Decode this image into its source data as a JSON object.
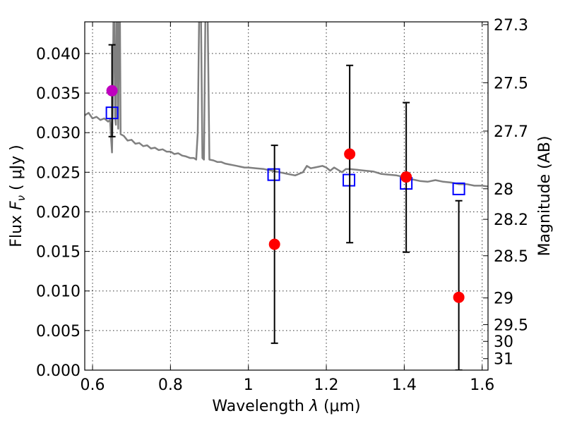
{
  "chart_data": {
    "type": "scatter",
    "xlabel_prefix": "Wavelength",
    "xlabel_symbol": "λ",
    "xlabel_unit": "(μm)",
    "ylabel_prefix": "Flux",
    "ylabel_symbol": "F",
    "ylabel_subscript": "ν",
    "ylabel_unit": "( μJy )",
    "y2label": "Magnitude (AB)",
    "xlim": [
      0.58,
      1.615
    ],
    "ylim": [
      0.0,
      0.044
    ],
    "grid": true,
    "x_ticks": [
      {
        "value": 0.6,
        "label": "0.6"
      },
      {
        "value": 0.8,
        "label": "0.8"
      },
      {
        "value": 1.0,
        "label": "1"
      },
      {
        "value": 1.2,
        "label": "1.2"
      },
      {
        "value": 1.4,
        "label": "1.4"
      },
      {
        "value": 1.6,
        "label": "1.6"
      }
    ],
    "y_ticks": [
      {
        "value": 0.0,
        "label": "0.000"
      },
      {
        "value": 0.005,
        "label": "0.005"
      },
      {
        "value": 0.01,
        "label": "0.010"
      },
      {
        "value": 0.015,
        "label": "0.015"
      },
      {
        "value": 0.02,
        "label": "0.020"
      },
      {
        "value": 0.025,
        "label": "0.025"
      },
      {
        "value": 0.03,
        "label": "0.030"
      },
      {
        "value": 0.035,
        "label": "0.035"
      },
      {
        "value": 0.04,
        "label": "0.040"
      }
    ],
    "y2_ticks": [
      {
        "flux": 0.04365,
        "label": "27.3"
      },
      {
        "flux": 0.03631,
        "label": "27.5"
      },
      {
        "flux": 0.0302,
        "label": "27.7"
      },
      {
        "flux": 0.02291,
        "label": "28"
      },
      {
        "flux": 0.01905,
        "label": "28.2"
      },
      {
        "flux": 0.01445,
        "label": "28.5"
      },
      {
        "flux": 0.00912,
        "label": "29"
      },
      {
        "flux": 0.00575,
        "label": "29.5"
      },
      {
        "flux": 0.00363,
        "label": "30"
      },
      {
        "flux": 0.00145,
        "label": "31"
      }
    ],
    "model_spectrum": {
      "color": "#808080",
      "points": [
        [
          0.58,
          0.0322
        ],
        [
          0.59,
          0.0325
        ],
        [
          0.6,
          0.0318
        ],
        [
          0.61,
          0.032
        ],
        [
          0.62,
          0.0316
        ],
        [
          0.63,
          0.0318
        ],
        [
          0.64,
          0.0314
        ],
        [
          0.645,
          0.0316
        ],
        [
          0.648,
          0.029
        ],
        [
          0.65,
          0.0275
        ],
        [
          0.652,
          0.0335
        ],
        [
          0.654,
          0.0465
        ],
        [
          0.656,
          0.0465
        ],
        [
          0.658,
          0.032
        ],
        [
          0.66,
          0.031
        ],
        [
          0.662,
          0.0465
        ],
        [
          0.664,
          0.0465
        ],
        [
          0.666,
          0.0305
        ],
        [
          0.668,
          0.0465
        ],
        [
          0.67,
          0.0465
        ],
        [
          0.672,
          0.0298
        ],
        [
          0.68,
          0.0296
        ],
        [
          0.69,
          0.029
        ],
        [
          0.7,
          0.0291
        ],
        [
          0.71,
          0.0286
        ],
        [
          0.72,
          0.0287
        ],
        [
          0.73,
          0.0283
        ],
        [
          0.74,
          0.0284
        ],
        [
          0.75,
          0.028
        ],
        [
          0.76,
          0.0281
        ],
        [
          0.77,
          0.0278
        ],
        [
          0.78,
          0.0279
        ],
        [
          0.79,
          0.0276
        ],
        [
          0.8,
          0.0276
        ],
        [
          0.81,
          0.0273
        ],
        [
          0.82,
          0.0274
        ],
        [
          0.83,
          0.0271
        ],
        [
          0.84,
          0.027
        ],
        [
          0.85,
          0.0268
        ],
        [
          0.86,
          0.0268
        ],
        [
          0.866,
          0.0266
        ],
        [
          0.87,
          0.03
        ],
        [
          0.874,
          0.0465
        ],
        [
          0.878,
          0.0465
        ],
        [
          0.882,
          0.0268
        ],
        [
          0.886,
          0.0266
        ],
        [
          0.89,
          0.0465
        ],
        [
          0.895,
          0.0465
        ],
        [
          0.9,
          0.0266
        ],
        [
          0.91,
          0.0265
        ],
        [
          0.92,
          0.0263
        ],
        [
          0.93,
          0.0263
        ],
        [
          0.94,
          0.0261
        ],
        [
          0.95,
          0.026
        ],
        [
          0.96,
          0.0259
        ],
        [
          0.97,
          0.0258
        ],
        [
          0.98,
          0.0257
        ],
        [
          0.99,
          0.0256
        ],
        [
          1.0,
          0.0256
        ],
        [
          1.02,
          0.0255
        ],
        [
          1.04,
          0.0254
        ],
        [
          1.06,
          0.0252
        ],
        [
          1.08,
          0.025
        ],
        [
          1.1,
          0.0248
        ],
        [
          1.12,
          0.0246
        ],
        [
          1.14,
          0.025
        ],
        [
          1.15,
          0.0258
        ],
        [
          1.16,
          0.0255
        ],
        [
          1.17,
          0.0256
        ],
        [
          1.18,
          0.0257
        ],
        [
          1.19,
          0.0258
        ],
        [
          1.2,
          0.0256
        ],
        [
          1.21,
          0.0252
        ],
        [
          1.22,
          0.0256
        ],
        [
          1.23,
          0.0253
        ],
        [
          1.24,
          0.025
        ],
        [
          1.25,
          0.0254
        ],
        [
          1.26,
          0.0254
        ],
        [
          1.28,
          0.0253
        ],
        [
          1.3,
          0.0252
        ],
        [
          1.32,
          0.0251
        ],
        [
          1.34,
          0.0248
        ],
        [
          1.36,
          0.0247
        ],
        [
          1.38,
          0.0246
        ],
        [
          1.4,
          0.0244
        ],
        [
          1.42,
          0.0241
        ],
        [
          1.44,
          0.0239
        ],
        [
          1.46,
          0.0238
        ],
        [
          1.48,
          0.024
        ],
        [
          1.5,
          0.0238
        ],
        [
          1.52,
          0.0237
        ],
        [
          1.54,
          0.0235
        ],
        [
          1.56,
          0.0235
        ],
        [
          1.58,
          0.0233
        ],
        [
          1.6,
          0.0233
        ],
        [
          1.615,
          0.0232
        ]
      ]
    },
    "model_photometry": {
      "marker": "open-square",
      "color": "#0000ff",
      "points": [
        {
          "x": 0.65,
          "y": 0.0325
        },
        {
          "x": 1.065,
          "y": 0.0247
        },
        {
          "x": 1.258,
          "y": 0.024
        },
        {
          "x": 1.405,
          "y": 0.0236
        },
        {
          "x": 1.54,
          "y": 0.0229
        }
      ]
    },
    "observed_photometry": {
      "marker": "filled-circle",
      "points": [
        {
          "x": 0.65,
          "y": 0.0353,
          "err_low": 0.0295,
          "err_high": 0.0411,
          "color": "#bf00bf"
        },
        {
          "x": 1.067,
          "y": 0.0159,
          "err_low": 0.0034,
          "err_high": 0.0284,
          "color": "#ff0000"
        },
        {
          "x": 1.26,
          "y": 0.0273,
          "err_low": 0.0161,
          "err_high": 0.0385,
          "color": "#ff0000"
        },
        {
          "x": 1.405,
          "y": 0.0244,
          "err_low": 0.0149,
          "err_high": 0.0338,
          "color": "#ff0000"
        },
        {
          "x": 1.54,
          "y": 0.0092,
          "err_low": 0.0,
          "err_high": 0.0214,
          "color": "#ff0000"
        }
      ]
    }
  }
}
